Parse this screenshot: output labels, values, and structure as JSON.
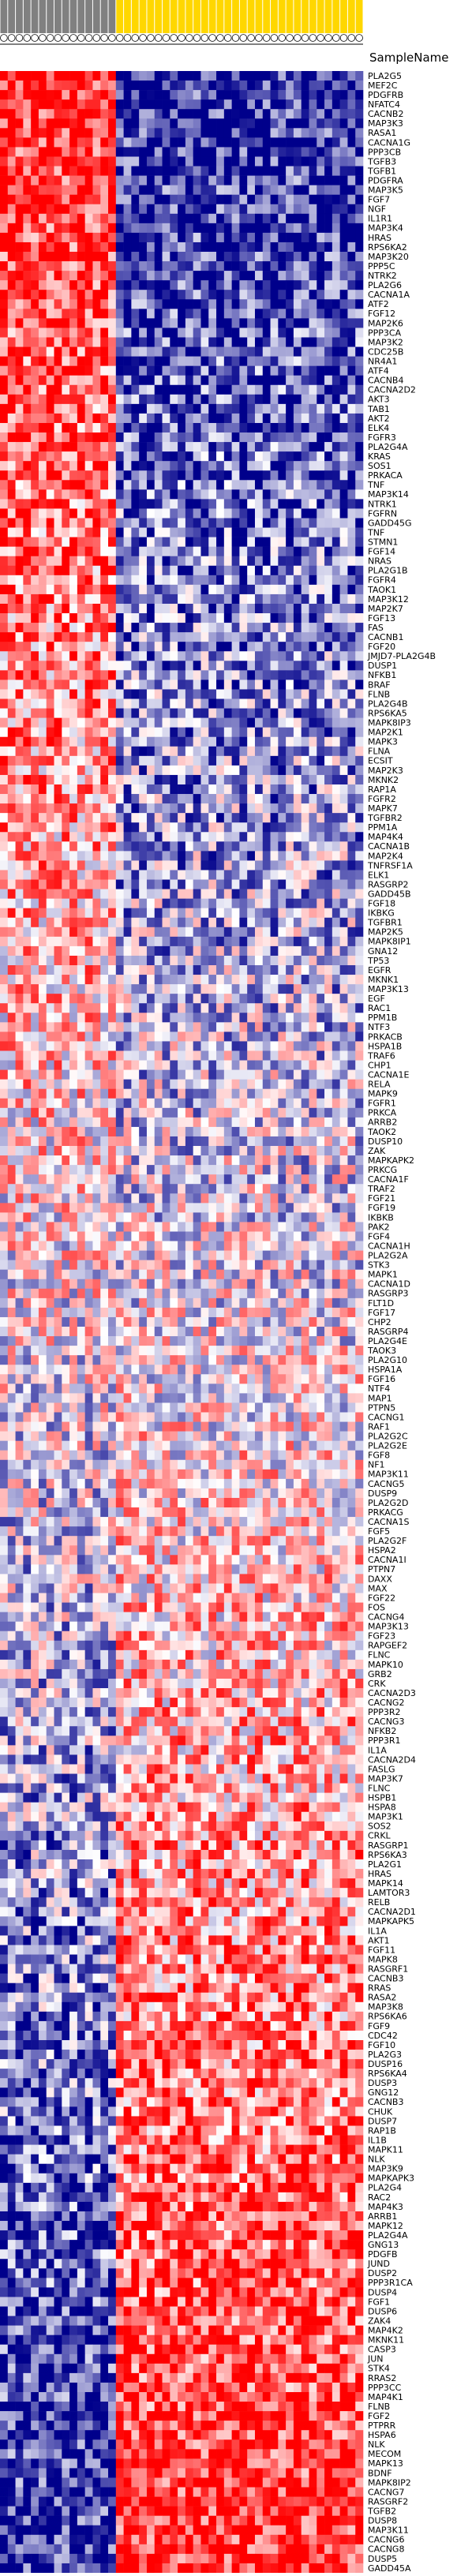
{
  "chart_data": {
    "type": "heatmap",
    "row_header": "SampleName",
    "column_count": 47,
    "group_colors": {
      "group_a": "#808080",
      "group_b": "#FFD700"
    },
    "group_a_count": 15,
    "group_b_count": 32,
    "color_scale": {
      "low": "#00008B",
      "mid": "#FFFFFF",
      "high": "#FF0000"
    },
    "rows": [
      "PLA2G5",
      "MEF2C",
      "PDGFRB",
      "NFATC4",
      "CACNB2",
      "MAP3K3",
      "RASA1",
      "CACNA1G",
      "PPP3CB",
      "TGFB3",
      "TGFB1",
      "PDGFRA",
      "MAP3K5",
      "FGF7",
      "NGF",
      "IL1R1",
      "MAP3K4",
      "HRAS",
      "RPS6KA2",
      "MAP3K20",
      "PPP5C",
      "NTRK2",
      "PLA2G6",
      "CACNA1A",
      "ATF2",
      "FGF12",
      "MAP2K6",
      "PPP3CA",
      "MAP3K2",
      "CDC25B",
      "NR4A1",
      "ATF4",
      "CACNB4",
      "CACNA2D2",
      "AKT3",
      "TAB1",
      "AKT2",
      "ELK4",
      "FGFR3",
      "PLA2G4A",
      "KRAS",
      "SOS1",
      "PRKACA",
      "TNF",
      "MAP3K14",
      "NTRK1",
      "FGFRN",
      "GADD45G",
      "TNF",
      "STMN1",
      "FGF14",
      "NRAS",
      "PLA2G1B",
      "FGFR4",
      "TAOK1",
      "MAP3K12",
      "MAP2K7",
      "FGF13",
      "FAS",
      "CACNB1",
      "FGF20",
      "JMJD7-PLA2G4B",
      "DUSP1",
      "NFKB1",
      "BRAF",
      "FLNB",
      "PLA2G4B",
      "RPS6KA5",
      "MAPK8IP3",
      "MAP2K1",
      "MAPK3",
      "FLNA",
      "ECSIT",
      "MAP2K3",
      "MKNK2",
      "RAP1A",
      "FGFR2",
      "MAPK7",
      "TGFBR2",
      "PPM1A",
      "MAP4K4",
      "CACNA1B",
      "MAP2K4",
      "TNFRSF1A",
      "ELK1",
      "RASGRP2",
      "GADD45B",
      "FGF18",
      "IKBKG",
      "TGFBR1",
      "MAP2K5",
      "MAPK8IP1",
      "GNA12",
      "TP53",
      "EGFR",
      "MKNK1",
      "MAP3K13",
      "EGF",
      "RAC1",
      "PPM1B",
      "NTF3",
      "PRKACB",
      "HSPA1B",
      "TRAF6",
      "CHP1",
      "CACNA1E",
      "RELA",
      "MAPK9",
      "FGFR1",
      "PRKCA",
      "ARRB2",
      "TAOK2",
      "DUSP10",
      "ZAK",
      "MAPKAPK2",
      "PRKCG",
      "CACNA1F",
      "TRAF2",
      "FGF21",
      "FGF19",
      "IKBKB",
      "PAK2",
      "FGF4",
      "CACNA1H",
      "PLA2G2A",
      "STK3",
      "MAPK1",
      "CACNA1D",
      "RASGRP3",
      "FLT1D",
      "FGF17",
      "CHP2",
      "RASGRP4",
      "PLA2G4E",
      "TAOK3",
      "PLA2G10",
      "HSPA1A",
      "FGF16",
      "NTF4",
      "MAP1",
      "PTPN5",
      "CACNG1",
      "RAF1",
      "PLA2G2C",
      "PLA2G2E",
      "FGF8",
      "NF1",
      "MAP3K11",
      "CACNG5",
      "DUSP9",
      "PLA2G2D",
      "PRKACG",
      "CACNA1S",
      "FGF5",
      "PLA2G2F",
      "HSPA2",
      "CACNA1I",
      "PTPN7",
      "DAXX",
      "MAX",
      "FGF22",
      "FOS",
      "CACNG4",
      "MAP3K13",
      "FGF23",
      "RAPGEF2",
      "FLNC",
      "MAPK10",
      "GRB2",
      "CRK",
      "CACNA2D3",
      "CACNG2",
      "PPP3R2",
      "CACNG3",
      "NFKB2",
      "PPP3R1",
      "IL1A",
      "CACNA2D4",
      "FASLG",
      "MAP3K7",
      "FLNC",
      "HSPB1",
      "HSPA8",
      "MAP3K1",
      "SOS2",
      "CRKL",
      "RASGRP1",
      "RPS6KA3",
      "PLA2G1",
      "HRAS",
      "MAPK14",
      "LAMTOR3",
      "RELB",
      "CACNA2D1",
      "MAPKAPK5",
      "IL1A",
      "AKT1",
      "FGF11",
      "MAPK8",
      "RASGRF1",
      "CACNB3",
      "RRAS",
      "RASA2",
      "MAP3K8",
      "RPS6KA6",
      "FGF9",
      "CDC42",
      "FGF10",
      "PLA2G3",
      "DUSP16",
      "RPS6KA4",
      "DUSP3",
      "GNG12",
      "CACNB3",
      "CHUK",
      "DUSP7",
      "RAP1B",
      "IL1B",
      "MAPK11",
      "NLK",
      "MAP3K9",
      "MAPKAPK3",
      "PLA2G4",
      "RAC2",
      "MAP4K3",
      "ARRB1",
      "MAPK12",
      "PLA2G4A",
      "GNG13",
      "PDGFB",
      "JUND",
      "DUSP2",
      "PPP3R1CA",
      "DUSP4",
      "FGF1",
      "DUSP6",
      "ZAK4",
      "MAP4K2",
      "MKNK11",
      "CASP3",
      "JUN",
      "STK4",
      "RRAS2",
      "PPP3CC",
      "MAP4K1",
      "FLNB",
      "FGF2",
      "PTPRR",
      "HSPA6",
      "NLK",
      "MECOM",
      "MAPK13",
      "BDNF",
      "MAPK8IP2",
      "CACNG7",
      "RASGRF2",
      "TGFB2",
      "DUSP8",
      "MAP3K11",
      "CACNG6",
      "CACNG8",
      "DUSP5",
      "GADD45A"
    ],
    "values_note": "Estimated cell shades read off the image; generated reproducibly by the rendering script."
  }
}
